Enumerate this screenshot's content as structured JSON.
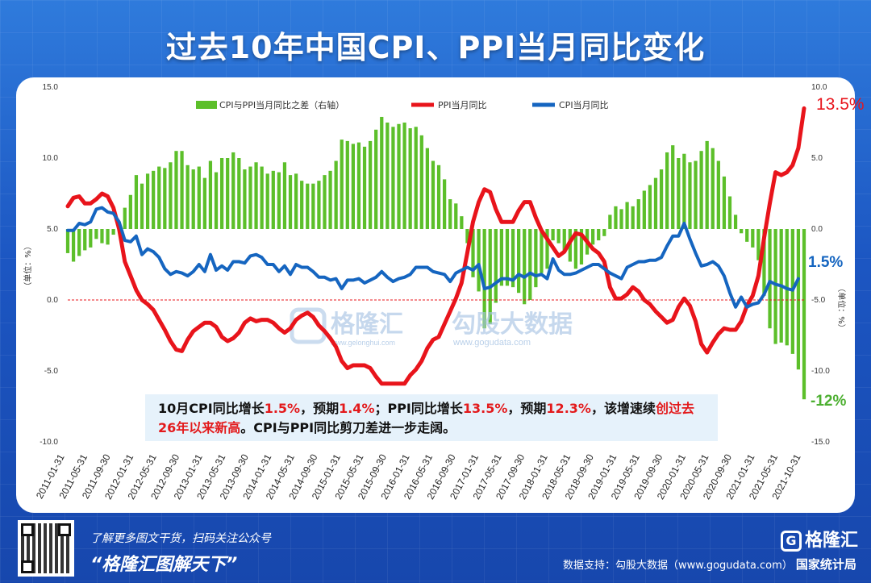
{
  "title": "过去10年中国CPI、PPI当月同比变化",
  "chart_data": {
    "type": "line",
    "x_ticks": [
      "2011-01-31",
      "2011-05-31",
      "2011-09-30",
      "2012-01-31",
      "2012-05-31",
      "2012-09-30",
      "2013-01-31",
      "2013-05-31",
      "2013-09-30",
      "2014-01-31",
      "2014-05-31",
      "2014-09-30",
      "2015-01-31",
      "2015-05-31",
      "2015-09-30",
      "2016-01-31",
      "2016-05-31",
      "2016-09-30",
      "2017-01-31",
      "2017-05-31",
      "2017-09-30",
      "2018-01-31",
      "2018-05-31",
      "2018-09-30",
      "2019-01-31",
      "2019-05-31",
      "2019-09-30",
      "2020-01-31",
      "2020-05-31",
      "2020-09-30",
      "2021-01-31",
      "2021-05-31",
      "2021-10-31"
    ],
    "x_start": "2011-01",
    "x_end": "2021-10",
    "left_axis": {
      "ylim": [
        -10,
        15
      ],
      "ticks": [
        "15.0",
        "10.0",
        "5.0",
        "0.0",
        "-5.0",
        "-10.0"
      ],
      "label": "（单位：%）"
    },
    "right_axis": {
      "ylim": [
        -15,
        10
      ],
      "ticks": [
        "10.0",
        "5.0",
        "0.0",
        "-5.0",
        "-10.0",
        "-15.0"
      ],
      "label": "（单位：%）"
    },
    "legend": [
      "CPI与PPI当月同比之差（右轴）",
      "PPI当月同比",
      "CPI当月同比"
    ],
    "series": [
      {
        "name": "PPI当月同比",
        "color": "#e8141b",
        "axis": "left",
        "values": [
          6.6,
          7.2,
          7.3,
          6.8,
          6.8,
          7.1,
          7.5,
          7.3,
          6.5,
          5.0,
          2.7,
          1.7,
          0.7,
          0.0,
          -0.3,
          -0.7,
          -1.4,
          -2.1,
          -2.9,
          -3.5,
          -3.6,
          -2.8,
          -2.2,
          -1.9,
          -1.6,
          -1.6,
          -1.9,
          -2.6,
          -2.9,
          -2.7,
          -2.3,
          -1.6,
          -1.3,
          -1.5,
          -1.4,
          -1.4,
          -1.6,
          -2.0,
          -2.3,
          -2.0,
          -1.4,
          -1.1,
          -0.9,
          -1.2,
          -1.8,
          -2.2,
          -2.7,
          -3.3,
          -4.3,
          -4.8,
          -4.6,
          -4.6,
          -4.6,
          -4.8,
          -5.4,
          -5.9,
          -5.9,
          -5.9,
          -5.9,
          -5.9,
          -5.3,
          -4.9,
          -4.3,
          -3.4,
          -2.8,
          -2.6,
          -1.7,
          -0.8,
          0.1,
          1.2,
          3.3,
          5.5,
          6.9,
          7.8,
          7.6,
          6.4,
          5.5,
          5.5,
          5.5,
          6.3,
          6.9,
          6.9,
          5.8,
          4.9,
          4.3,
          3.7,
          3.1,
          3.4,
          4.1,
          4.7,
          4.6,
          4.1,
          3.6,
          3.3,
          2.7,
          0.9,
          0.1,
          0.1,
          0.4,
          0.9,
          0.6,
          0.0,
          -0.3,
          -0.8,
          -1.2,
          -1.6,
          -1.4,
          -0.5,
          0.1,
          -0.4,
          -1.5,
          -3.1,
          -3.7,
          -3.0,
          -2.4,
          -2.0,
          -2.1,
          -2.1,
          -1.5,
          -0.4,
          0.3,
          1.7,
          4.4,
          6.8,
          9.0,
          8.8,
          9.0,
          9.5,
          10.7,
          13.5
        ]
      },
      {
        "name": "CPI当月同比",
        "color": "#1565c0",
        "axis": "left",
        "values": [
          4.9,
          4.9,
          5.4,
          5.3,
          5.5,
          6.4,
          6.5,
          6.2,
          6.1,
          5.5,
          4.2,
          4.1,
          4.5,
          3.2,
          3.6,
          3.4,
          3.0,
          2.2,
          1.8,
          2.0,
          1.9,
          1.7,
          2.0,
          2.5,
          2.0,
          3.2,
          2.1,
          2.4,
          2.1,
          2.7,
          2.7,
          2.6,
          3.1,
          3.2,
          3.0,
          2.5,
          2.5,
          2.0,
          2.4,
          1.8,
          2.5,
          2.3,
          2.3,
          2.0,
          1.6,
          1.6,
          1.4,
          1.5,
          0.8,
          1.4,
          1.4,
          1.5,
          1.2,
          1.4,
          1.6,
          2.0,
          1.6,
          1.3,
          1.5,
          1.6,
          1.8,
          2.3,
          2.3,
          2.3,
          2.0,
          1.9,
          1.8,
          1.3,
          1.9,
          2.1,
          2.3,
          2.1,
          2.5,
          0.8,
          0.9,
          1.2,
          1.5,
          1.5,
          1.4,
          1.8,
          1.6,
          1.9,
          1.7,
          1.8,
          1.5,
          2.9,
          2.1,
          1.8,
          1.8,
          1.9,
          2.1,
          2.3,
          2.5,
          2.5,
          2.2,
          1.9,
          1.7,
          1.5,
          2.3,
          2.5,
          2.7,
          2.7,
          2.8,
          2.8,
          3.0,
          3.8,
          4.5,
          4.5,
          5.4,
          4.3,
          3.3,
          2.4,
          2.5,
          2.7,
          2.4,
          1.7,
          0.5,
          -0.5,
          0.2,
          -0.5,
          -0.3,
          -0.2,
          0.4,
          1.3,
          1.1,
          1.0,
          0.8,
          0.7,
          1.5
        ]
      },
      {
        "name": "CPI与PPI当月同比之差（右轴）",
        "color": "#5cbf2a",
        "axis": "right",
        "type": "bar",
        "values": [
          -1.7,
          -2.3,
          -1.9,
          -1.5,
          -1.3,
          -0.7,
          -1.0,
          -1.1,
          -0.4,
          0.5,
          1.5,
          2.4,
          3.8,
          3.2,
          3.9,
          4.1,
          4.4,
          4.3,
          4.7,
          5.5,
          5.5,
          4.5,
          4.2,
          4.4,
          3.6,
          4.8,
          4.0,
          5.0,
          5.0,
          5.4,
          5.0,
          4.2,
          4.4,
          4.7,
          4.4,
          3.9,
          4.1,
          4.0,
          4.7,
          3.8,
          3.9,
          3.4,
          3.2,
          3.2,
          3.4,
          3.8,
          4.1,
          4.8,
          6.3,
          6.2,
          6.0,
          6.1,
          5.8,
          6.2,
          7.0,
          7.9,
          7.5,
          7.2,
          7.4,
          7.5,
          7.1,
          7.2,
          6.6,
          5.7,
          4.8,
          4.5,
          3.5,
          2.1,
          1.8,
          0.9,
          -1.0,
          -3.4,
          -4.4,
          -7.0,
          -6.7,
          -5.2,
          -4.0,
          -4.0,
          -4.1,
          -4.5,
          -5.3,
          -5.0,
          -4.1,
          -3.1,
          -2.8,
          -0.8,
          -1.0,
          -1.6,
          -2.3,
          -2.8,
          -2.5,
          -1.8,
          -1.1,
          -0.8,
          -0.5,
          1.0,
          1.6,
          1.4,
          1.9,
          1.6,
          2.1,
          2.7,
          3.1,
          3.6,
          4.2,
          5.4,
          5.9,
          5.0,
          5.3,
          4.7,
          4.8,
          5.5,
          6.2,
          5.7,
          4.8,
          3.7,
          2.3,
          1.0,
          -0.3,
          -0.9,
          -1.3,
          -2.2,
          -4.7,
          -7.0,
          -8.1,
          -8.0,
          -8.2,
          -8.8,
          -9.9,
          -12.0
        ]
      }
    ],
    "end_labels": {
      "ppi": "13.5%",
      "cpi": "1.5%",
      "diff": "-12%"
    },
    "reference_line": {
      "value": 0,
      "axis": "left",
      "style": "dashed",
      "color": "#e8141b"
    }
  },
  "watermark": {
    "brand": "格隆汇",
    "brand_url": "www.gelonghui.com",
    "data": "勾股大数据",
    "data_url": "www.gogudata.com"
  },
  "note": {
    "p1": "10月CPI同比增长",
    "v1": "1.5%",
    "p2": "，预期",
    "v2": "1.4%",
    "p3": "；PPI同比增长",
    "v3": "13.5%",
    "p4": "，预期",
    "v4": "12.3%",
    "p5": "，该增速续",
    "v5": "创过去26年以来新高",
    "p6": "。CPI与PPI同比剪刀差进一步走阔。"
  },
  "footer": {
    "line1": "了解更多图文干货，扫码关注公众号",
    "line2": "“格隆汇图解天下”",
    "logo": "格隆汇",
    "source_label": "数据支持：",
    "source_text": "勾股大数据（www.gogudata.com）",
    "source2": "国家统计局"
  }
}
